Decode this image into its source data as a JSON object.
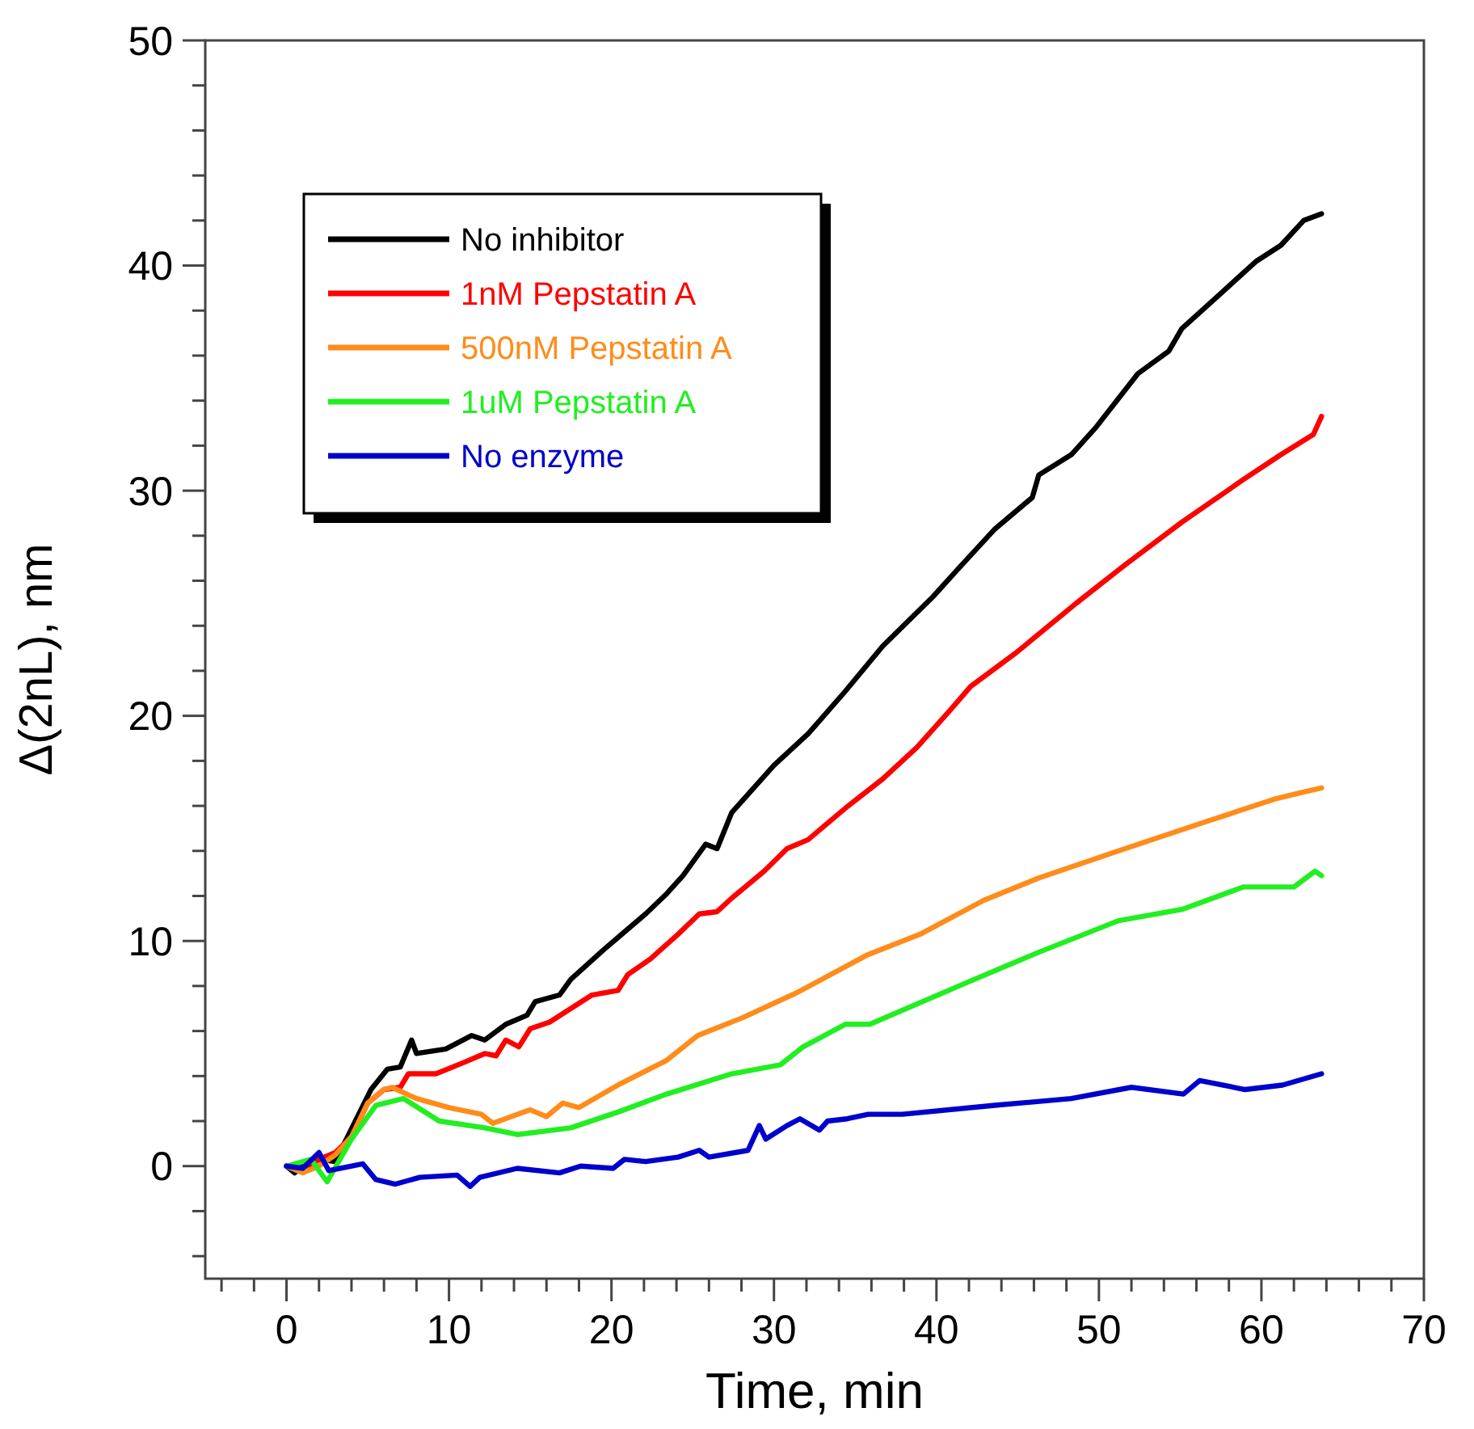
{
  "chart_data": {
    "type": "line",
    "xlabel": "Time, min",
    "ylabel": "Δ(2nL), nm",
    "xlim": [
      -5,
      70
    ],
    "ylim": [
      -5,
      50
    ],
    "xticks": [
      {
        "value": -4,
        "label": null
      },
      {
        "value": -2,
        "label": null
      },
      0,
      {
        "value": 2,
        "label": null
      },
      {
        "value": 4,
        "label": null
      },
      {
        "value": 6,
        "label": null
      },
      {
        "value": 8,
        "label": null
      },
      10,
      {
        "value": 12,
        "label": null
      },
      {
        "value": 14,
        "label": null
      },
      {
        "value": 16,
        "label": null
      },
      {
        "value": 18,
        "label": null
      },
      20,
      {
        "value": 22,
        "label": null
      },
      {
        "value": 24,
        "label": null
      },
      {
        "value": 26,
        "label": null
      },
      {
        "value": 28,
        "label": null
      },
      30,
      {
        "value": 32,
        "label": null
      },
      {
        "value": 34,
        "label": null
      },
      {
        "value": 36,
        "label": null
      },
      {
        "value": 38,
        "label": null
      },
      40,
      {
        "value": 42,
        "label": null
      },
      {
        "value": 44,
        "label": null
      },
      {
        "value": 46,
        "label": null
      },
      {
        "value": 48,
        "label": null
      },
      50,
      {
        "value": 52,
        "label": null
      },
      {
        "value": 54,
        "label": null
      },
      {
        "value": 56,
        "label": null
      },
      {
        "value": 58,
        "label": null
      },
      60,
      {
        "value": 62,
        "label": null
      },
      {
        "value": 64,
        "label": null
      },
      {
        "value": 66,
        "label": null
      },
      {
        "value": 68,
        "label": null
      },
      70
    ],
    "yticks": [
      {
        "value": -4,
        "label": null
      },
      {
        "value": -2,
        "label": null
      },
      0,
      {
        "value": 2,
        "label": null
      },
      {
        "value": 4,
        "label": null
      },
      {
        "value": 6,
        "label": null
      },
      {
        "value": 8,
        "label": null
      },
      10,
      {
        "value": 12,
        "label": null
      },
      {
        "value": 14,
        "label": null
      },
      {
        "value": 16,
        "label": null
      },
      {
        "value": 18,
        "label": null
      },
      20,
      {
        "value": 22,
        "label": null
      },
      {
        "value": 24,
        "label": null
      },
      {
        "value": 26,
        "label": null
      },
      {
        "value": 28,
        "label": null
      },
      30,
      {
        "value": 32,
        "label": null
      },
      {
        "value": 34,
        "label": null
      },
      {
        "value": 36,
        "label": null
      },
      {
        "value": 38,
        "label": null
      },
      40,
      {
        "value": 42,
        "label": null
      },
      {
        "value": 44,
        "label": null
      },
      {
        "value": 46,
        "label": null
      },
      {
        "value": 48,
        "label": null
      },
      50
    ],
    "grid": false,
    "legend": "top left",
    "marker": "none",
    "line_style": "solid",
    "series": [
      {
        "name": "No inhibitor",
        "color": "#000000",
        "x": [
          0,
          0.5,
          1,
          2,
          3,
          5.2,
          6.2,
          7,
          7.7,
          8,
          9.8,
          11.4,
          12.2,
          13.5,
          14.8,
          15.3,
          16.8,
          17.5,
          19.5,
          20.8,
          22.1,
          23.4,
          24.4,
          25.8,
          26.5,
          27.4,
          30,
          32.1,
          34.4,
          36.7,
          39.8,
          41.3,
          43.6,
          45.9,
          46.3,
          48.3,
          49.8,
          52.4,
          54.3,
          55.1,
          57.4,
          59.7,
          61.2,
          62.6,
          63.7
        ],
        "values": [
          0,
          -0.3,
          0,
          0.3,
          0.2,
          3.4,
          4.3,
          4.4,
          5.6,
          5.0,
          5.2,
          5.8,
          5.6,
          6.3,
          6.7,
          7.3,
          7.6,
          8.3,
          9.6,
          10.4,
          11.2,
          12.1,
          12.9,
          14.3,
          14.1,
          15.7,
          17.8,
          19.2,
          21.1,
          23.1,
          25.3,
          26.5,
          28.3,
          29.7,
          30.7,
          31.6,
          32.8,
          35.2,
          36.2,
          37.2,
          38.7,
          40.2,
          40.9,
          42.0,
          42.3
        ]
      },
      {
        "name": "1nM Pepstatin A",
        "color": "#ff0000",
        "x": [
          0,
          1,
          2,
          3,
          4,
          5,
          6,
          7,
          7.5,
          9.2,
          10.9,
          12.2,
          12.9,
          13.5,
          14.3,
          15,
          16.2,
          17.5,
          18.8,
          20.4,
          21,
          22.4,
          24.1,
          25.4,
          26.5,
          27.4,
          29.4,
          30.8,
          32.1,
          34.4,
          36.7,
          38.8,
          40.9,
          42.1,
          44.9,
          48.6,
          51.6,
          55.1,
          58.9,
          61.2,
          63.2,
          63.7
        ],
        "values": [
          0,
          -0.2,
          0.3,
          0.6,
          1.3,
          2.8,
          3.4,
          3.5,
          4.1,
          4.1,
          4.6,
          5.0,
          4.9,
          5.6,
          5.3,
          6.1,
          6.4,
          7.0,
          7.6,
          7.8,
          8.5,
          9.2,
          10.3,
          11.2,
          11.3,
          11.9,
          13.1,
          14.1,
          14.5,
          15.9,
          17.2,
          18.6,
          20.3,
          21.3,
          22.8,
          25.0,
          26.7,
          28.6,
          30.5,
          31.6,
          32.5,
          33.3
        ]
      },
      {
        "name": "500nM Pepstatin A",
        "color": "#ff8c1a",
        "x": [
          0,
          1,
          2,
          3,
          4,
          5,
          6,
          6.5,
          8,
          10,
          12,
          12.7,
          15,
          16,
          17,
          18,
          20.4,
          23.4,
          25.3,
          28.1,
          31.4,
          35.8,
          39,
          42.9,
          46.3,
          51.2,
          56.6,
          60.8,
          62.5,
          63.7
        ],
        "values": [
          0,
          -0.3,
          0,
          0.5,
          1.3,
          2.8,
          3.4,
          3.5,
          3.0,
          2.6,
          2.3,
          1.9,
          2.5,
          2.2,
          2.8,
          2.6,
          3.6,
          4.7,
          5.8,
          6.6,
          7.7,
          9.4,
          10.3,
          11.8,
          12.8,
          14.0,
          15.3,
          16.3,
          16.6,
          16.8
        ]
      },
      {
        "name": "1uM Pepstatin A",
        "color": "#22ee22",
        "x": [
          0,
          1.5,
          2.5,
          4,
          5.5,
          7.2,
          9.4,
          12.2,
          14.2,
          17.5,
          20.4,
          23.4,
          27.4,
          30.4,
          31.8,
          34.4,
          35.9,
          41.7,
          46.3,
          51.2,
          55.1,
          58.9,
          62,
          63.3,
          63.7
        ],
        "values": [
          0,
          0.3,
          -0.7,
          1.2,
          2.7,
          3.0,
          2.0,
          1.7,
          1.4,
          1.7,
          2.4,
          3.2,
          4.1,
          4.5,
          5.3,
          6.3,
          6.3,
          8.1,
          9.5,
          10.9,
          11.4,
          12.4,
          12.4,
          13.1,
          12.9
        ]
      },
      {
        "name": "No enzyme",
        "color": "#0000cc",
        "x": [
          0,
          1,
          2,
          2.6,
          4.7,
          5.5,
          6.7,
          8.2,
          10.5,
          11.3,
          11.9,
          14.2,
          16.8,
          18.1,
          20.1,
          20.8,
          22.1,
          24.1,
          25.4,
          26,
          28.4,
          29.1,
          29.5,
          30.8,
          31.6,
          32.8,
          33.3,
          34.5,
          35.8,
          37.9,
          43.6,
          48.3,
          52,
          55.2,
          56.2,
          59,
          61.3,
          63.7
        ],
        "values": [
          0,
          -0.1,
          0.6,
          -0.2,
          0.1,
          -0.6,
          -0.8,
          -0.5,
          -0.4,
          -0.9,
          -0.5,
          -0.1,
          -0.3,
          0,
          -0.1,
          0.3,
          0.2,
          0.4,
          0.7,
          0.4,
          0.7,
          1.8,
          1.2,
          1.8,
          2.1,
          1.6,
          2.0,
          2.1,
          2.3,
          2.3,
          2.7,
          3.0,
          3.5,
          3.2,
          3.8,
          3.4,
          3.6,
          4.1
        ]
      }
    ]
  }
}
